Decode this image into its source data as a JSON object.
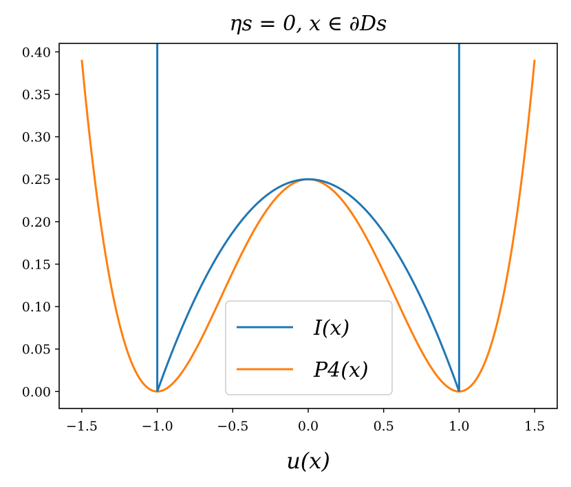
{
  "chart_data": {
    "type": "line",
    "title": "ηs = 0, x ∈ ∂Ds",
    "xlabel": "u(x)",
    "ylabel": "",
    "xlim": [
      -1.65,
      1.65
    ],
    "ylim": [
      -0.02,
      0.41
    ],
    "xticks": [
      "−1.5",
      "−1.0",
      "−0.5",
      "0.0",
      "0.5",
      "1.0",
      "1.5"
    ],
    "xtick_values": [
      -1.5,
      -1.0,
      -0.5,
      0.0,
      0.5,
      1.0,
      1.5
    ],
    "yticks": [
      "0.00",
      "0.05",
      "0.10",
      "0.15",
      "0.20",
      "0.25",
      "0.30",
      "0.35",
      "0.40"
    ],
    "ytick_values": [
      0.0,
      0.05,
      0.1,
      0.15,
      0.2,
      0.25,
      0.3,
      0.35,
      0.4
    ],
    "grid": false,
    "legend_position": "bottom-center",
    "series": [
      {
        "name": "I(x)",
        "color": "#1f77b4",
        "formula": "(1 - u^2)/4 for |u| <= 1; vertical lines at u = -1 and u = 1",
        "x": [
          -1.0,
          -0.75,
          -0.5,
          -0.25,
          0.0,
          0.25,
          0.5,
          0.75,
          1.0
        ],
        "y": [
          0.0,
          0.1094,
          0.1875,
          0.2344,
          0.25,
          0.2344,
          0.1875,
          0.1094,
          0.0
        ]
      },
      {
        "name": "P4(x)",
        "color": "#ff7f0e",
        "formula": "(1 - u^2)^2 / 4",
        "x": [
          -1.5,
          -1.25,
          -1.0,
          -0.75,
          -0.5,
          -0.25,
          0.0,
          0.25,
          0.5,
          0.75,
          1.0,
          1.25,
          1.5
        ],
        "y": [
          0.3906,
          0.0791,
          0.0,
          0.0479,
          0.1406,
          0.2197,
          0.25,
          0.2197,
          0.1406,
          0.0479,
          0.0,
          0.0791,
          0.3906
        ]
      }
    ]
  }
}
